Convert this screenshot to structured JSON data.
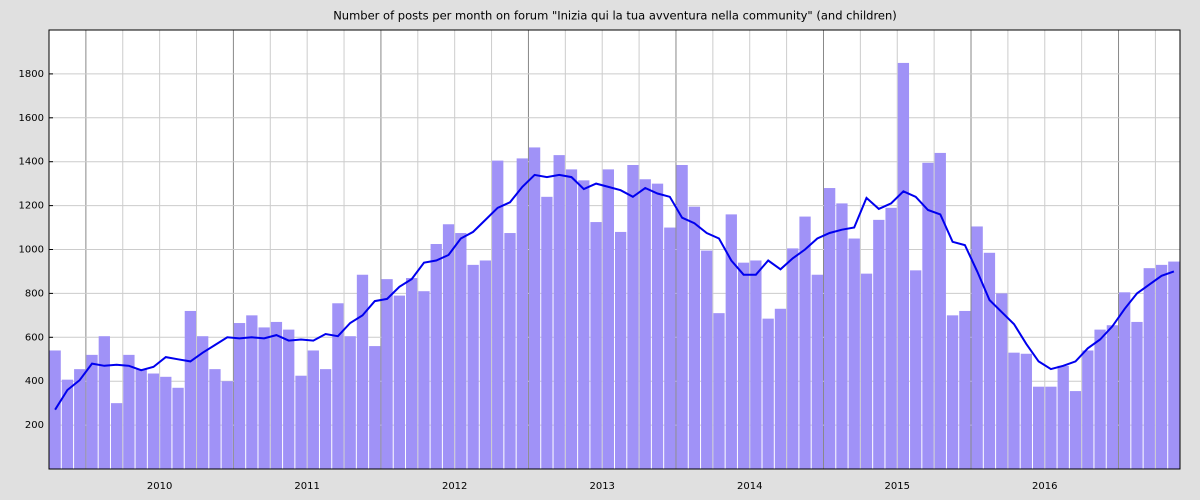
{
  "chart_data": {
    "type": "bar",
    "title": "Number of posts per month on forum \"Inizia qui la tua avventura nella community\" (and children)",
    "categories": [
      null,
      null,
      null,
      null,
      null,
      null,
      null,
      null,
      null,
      "2010",
      null,
      null,
      null,
      null,
      null,
      null,
      null,
      null,
      null,
      null,
      null,
      "2011",
      null,
      null,
      null,
      null,
      null,
      null,
      null,
      null,
      null,
      null,
      null,
      "2012",
      null,
      null,
      null,
      null,
      null,
      null,
      null,
      null,
      null,
      null,
      null,
      "2013",
      null,
      null,
      null,
      null,
      null,
      null,
      null,
      null,
      null,
      null,
      null,
      "2014",
      null,
      null,
      null,
      null,
      null,
      null,
      null,
      null,
      null,
      null,
      null,
      "2015",
      null,
      null,
      null,
      null,
      null,
      null,
      null,
      null,
      null,
      null,
      null,
      "2016",
      null,
      null,
      null,
      null,
      null,
      null,
      null,
      null,
      null,
      null
    ],
    "series": [
      {
        "type": "bar",
        "color": "#a092f7",
        "values": [
          540,
          407,
          455,
          520,
          605,
          300,
          520,
          455,
          435,
          420,
          370,
          720,
          605,
          455,
          400,
          665,
          700,
          645,
          670,
          635,
          425,
          540,
          455,
          755,
          605,
          885,
          560,
          865,
          790,
          870,
          810,
          1025,
          1115,
          1075,
          930,
          950,
          1405,
          1075,
          1415,
          1465,
          1240,
          1430,
          1365,
          1315,
          1125,
          1365,
          1080,
          1385,
          1320,
          1300,
          1100,
          1385,
          1195,
          995,
          710,
          1160,
          940,
          950,
          685,
          730,
          1005,
          1150,
          885,
          1280,
          1210,
          1050,
          890,
          1135,
          1190,
          1850,
          905,
          1395,
          1440,
          700,
          720,
          1105,
          985,
          800,
          530,
          525,
          375,
          375,
          470,
          355,
          540,
          635,
          655,
          805,
          670,
          915,
          930,
          945
        ]
      },
      {
        "type": "line",
        "color": "#0000ee",
        "values": [
          270,
          360,
          405,
          480,
          470,
          475,
          470,
          450,
          465,
          510,
          500,
          490,
          530,
          565,
          600,
          595,
          600,
          595,
          610,
          585,
          590,
          585,
          615,
          605,
          665,
          700,
          765,
          775,
          830,
          865,
          940,
          950,
          975,
          1050,
          1080,
          1135,
          1190,
          1215,
          1285,
          1340,
          1330,
          1340,
          1330,
          1275,
          1300,
          1285,
          1270,
          1240,
          1280,
          1255,
          1240,
          1145,
          1120,
          1075,
          1050,
          950,
          885,
          885,
          950,
          910,
          960,
          1000,
          1050,
          1075,
          1090,
          1100,
          1235,
          1185,
          1210,
          1265,
          1240,
          1180,
          1160,
          1035,
          1020,
          900,
          770,
          715,
          660,
          570,
          490,
          455,
          470,
          490,
          550,
          590,
          650,
          730,
          800,
          840,
          880,
          900
        ]
      }
    ],
    "ylim": [
      0,
      2000
    ],
    "yticks": [
      200,
      400,
      600,
      800,
      1000,
      1200,
      1400,
      1600,
      1800
    ],
    "grid": true
  }
}
